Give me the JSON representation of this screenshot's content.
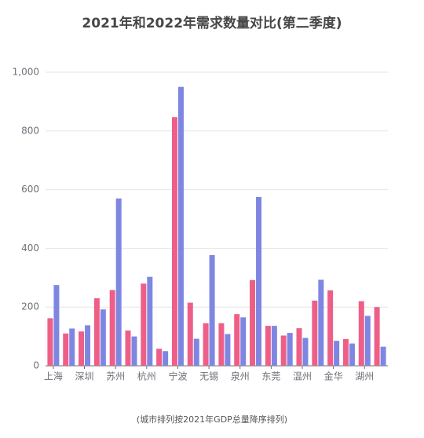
{
  "chart_data": {
    "type": "bar",
    "title": "2021年和2022年需求数量对比(第二季度)",
    "footnote": "(城市排列按2021年GDP总量降序排列)",
    "categories": [
      "上海",
      null,
      "深圳",
      null,
      "苏州",
      null,
      "杭州",
      null,
      "宁波",
      null,
      "无锡",
      null,
      "泉州",
      null,
      "东莞",
      null,
      "温州",
      null,
      "金华",
      null,
      "湖州",
      null
    ],
    "series": [
      {
        "color": "#ee5f87",
        "values": [
          162,
          110,
          117,
          230,
          258,
          120,
          280,
          58,
          847,
          215,
          145,
          145,
          176,
          292,
          136,
          103,
          128,
          222,
          257,
          91,
          220,
          200
        ]
      },
      {
        "color": "#7f86e2",
        "values": [
          275,
          127,
          138,
          192,
          570,
          100,
          303,
          50,
          950,
          92,
          377,
          108,
          165,
          575,
          136,
          112,
          95,
          293,
          85,
          76,
          170,
          65
        ]
      }
    ],
    "ylim": [
      0,
      1000
    ],
    "yticks": [
      0,
      200,
      400,
      600,
      800,
      {
        "value": 1000,
        "label": "1,000"
      }
    ],
    "grid": true
  }
}
